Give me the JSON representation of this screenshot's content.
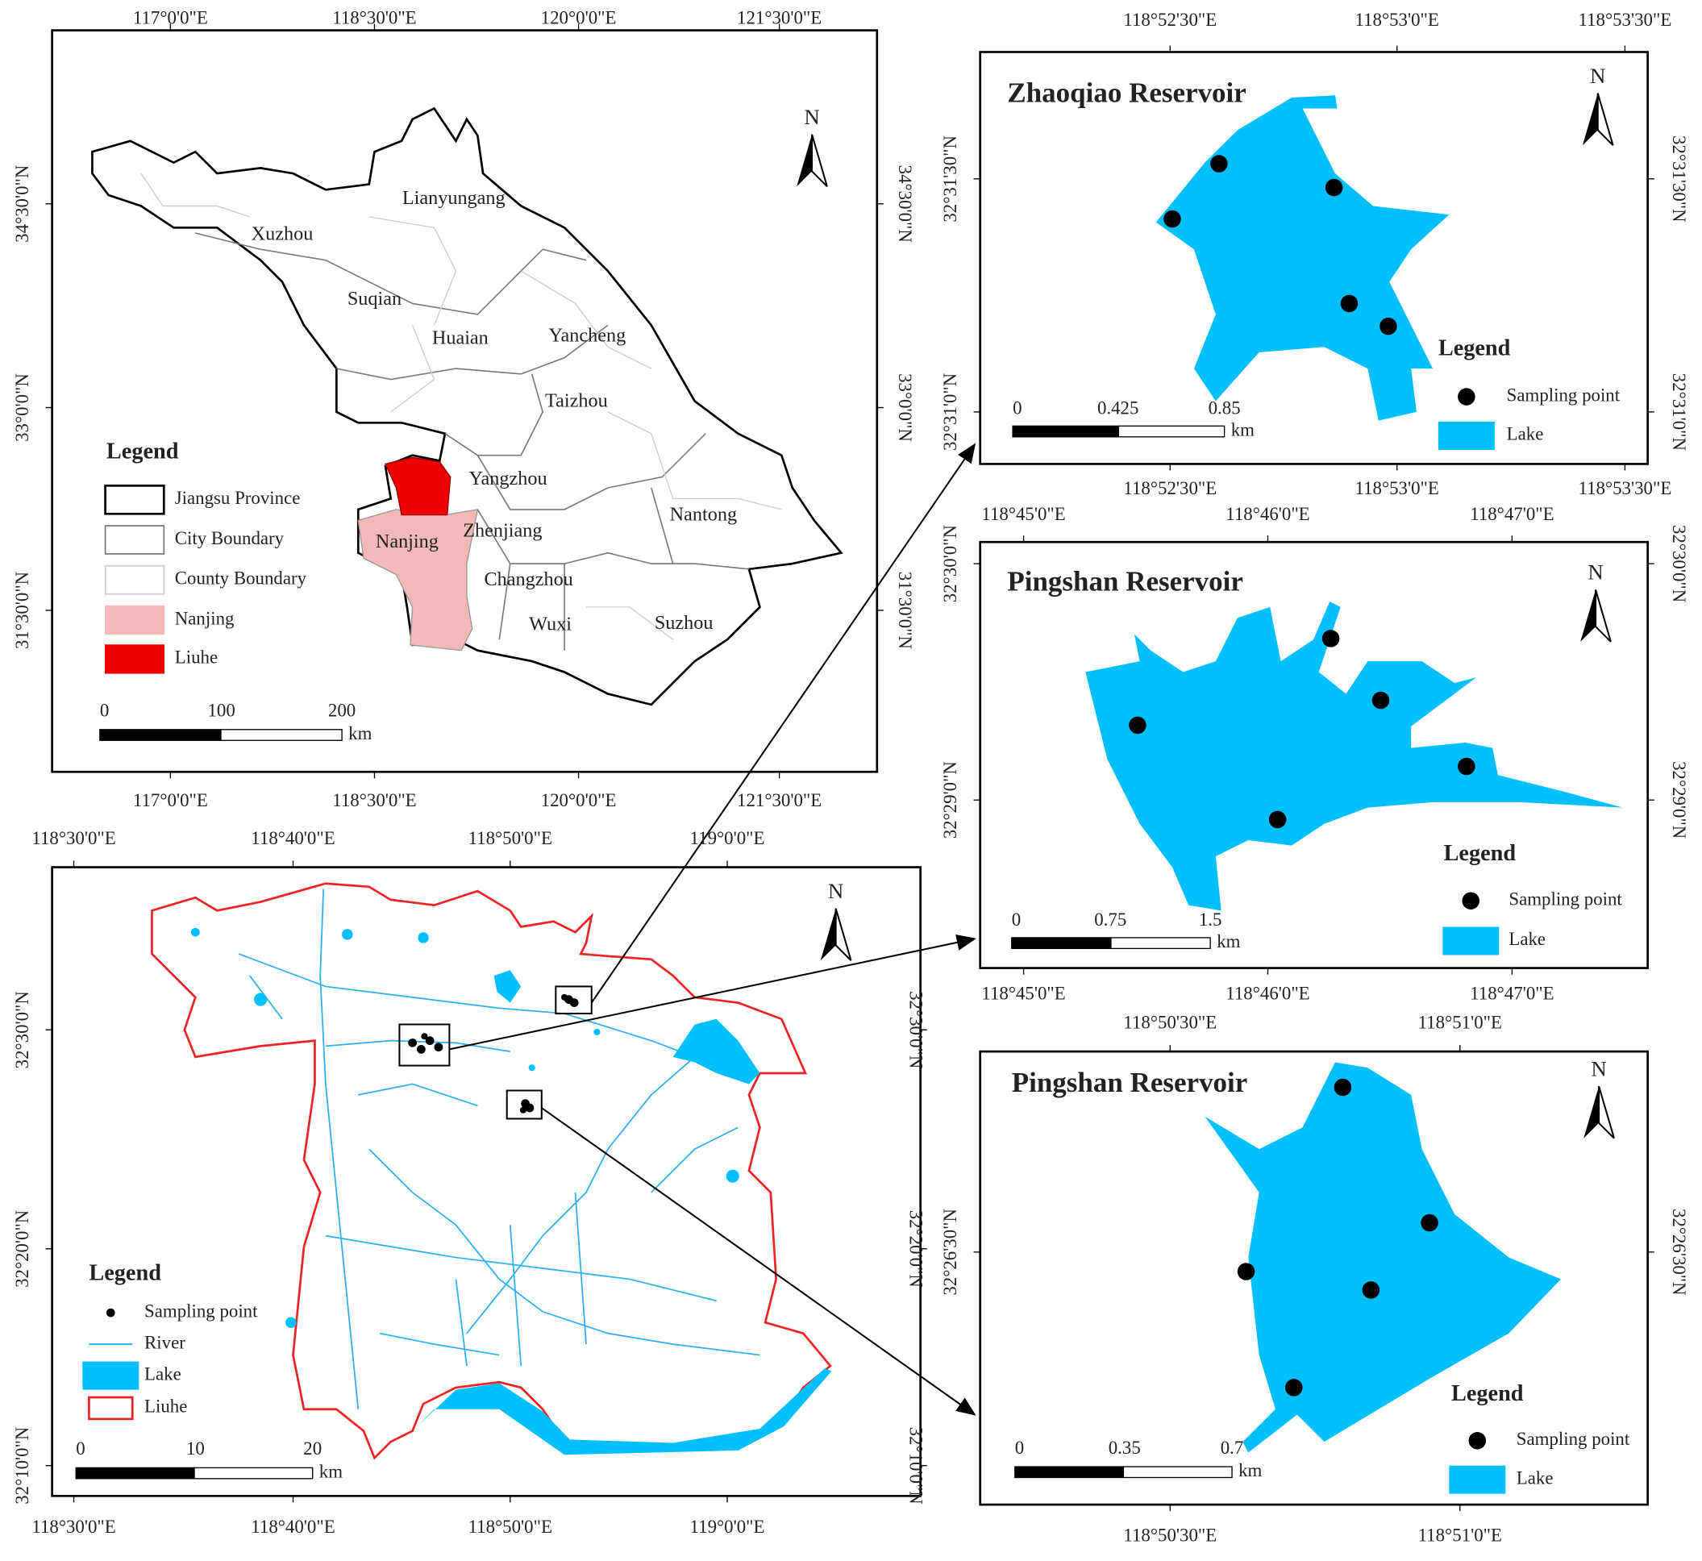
{
  "panels": [
    {
      "x_labels": [
        "117°0'0\"E",
        "118°30'0\"E",
        "120°0'0\"E",
        "121°30'0\"E"
      ],
      "y_labels": [
        "34°30'0\"N",
        "33°0'0\"N",
        "31°30'0\"N"
      ],
      "north": "N",
      "places": [
        "Lianyungang",
        "Xuzhou",
        "Suqian",
        "Huaian",
        "Yancheng",
        "Taizhou",
        "Yangzhou",
        "Nanjing",
        "Zhenjiang",
        "Nantong",
        "Changzhou",
        "Wuxi",
        "Suzhou"
      ],
      "legend": {
        "title": "Legend",
        "items": [
          "Jiangsu Province",
          "City Boundary",
          "County Boundary",
          "Nanjing",
          "Liuhe"
        ]
      },
      "scale": {
        "labels": [
          "0",
          "100",
          "200"
        ],
        "unit": "km"
      }
    },
    {
      "x_labels": [
        "118°30'0\"E",
        "118°40'0\"E",
        "118°50'0\"E",
        "119°0'0\"E"
      ],
      "y_labels": [
        "32°30'0\"N",
        "32°20'0\"N",
        "32°10'0\"N"
      ],
      "north": "N",
      "legend": {
        "title": "Legend",
        "items": [
          "Sampling point",
          "River",
          "Lake",
          "Liuhe"
        ]
      },
      "scale": {
        "labels": [
          "0",
          "10",
          "20"
        ],
        "unit": "km"
      }
    },
    {
      "title": "Zhaoqiao Reservoir",
      "x_labels": [
        "118°52'30\"E",
        "118°53'0\"E",
        "118°53'30\"E"
      ],
      "y_labels": [
        "32°31'30\"N",
        "32°31'0\"N"
      ],
      "north": "N",
      "legend": {
        "title": "Legend",
        "items": [
          "Sampling point",
          "Lake"
        ]
      },
      "scale": {
        "labels": [
          "0",
          "0.425",
          "0.85"
        ],
        "unit": "km"
      }
    },
    {
      "title": "Pingshan Reservoir",
      "x_labels": [
        "118°45'0\"E",
        "118°46'0\"E",
        "118°47'0\"E"
      ],
      "y_labels": [
        "32°30'0\"N",
        "32°29'0\"N"
      ],
      "north": "N",
      "legend": {
        "title": "Legend",
        "items": [
          "Sampling point",
          "Lake"
        ]
      },
      "scale": {
        "labels": [
          "0",
          "0.75",
          "1.5"
        ],
        "unit": "km"
      }
    },
    {
      "title": "Pingshan Reservoir",
      "x_labels": [
        "118°50'30\"E",
        "118°51'0\"E"
      ],
      "y_labels": [
        "32°26'30\"N"
      ],
      "north": "N",
      "legend": {
        "title": "Legend",
        "items": [
          "Sampling point",
          "Lake"
        ]
      },
      "scale": {
        "labels": [
          "0",
          "0.35",
          "0.7"
        ],
        "unit": "km"
      }
    }
  ]
}
